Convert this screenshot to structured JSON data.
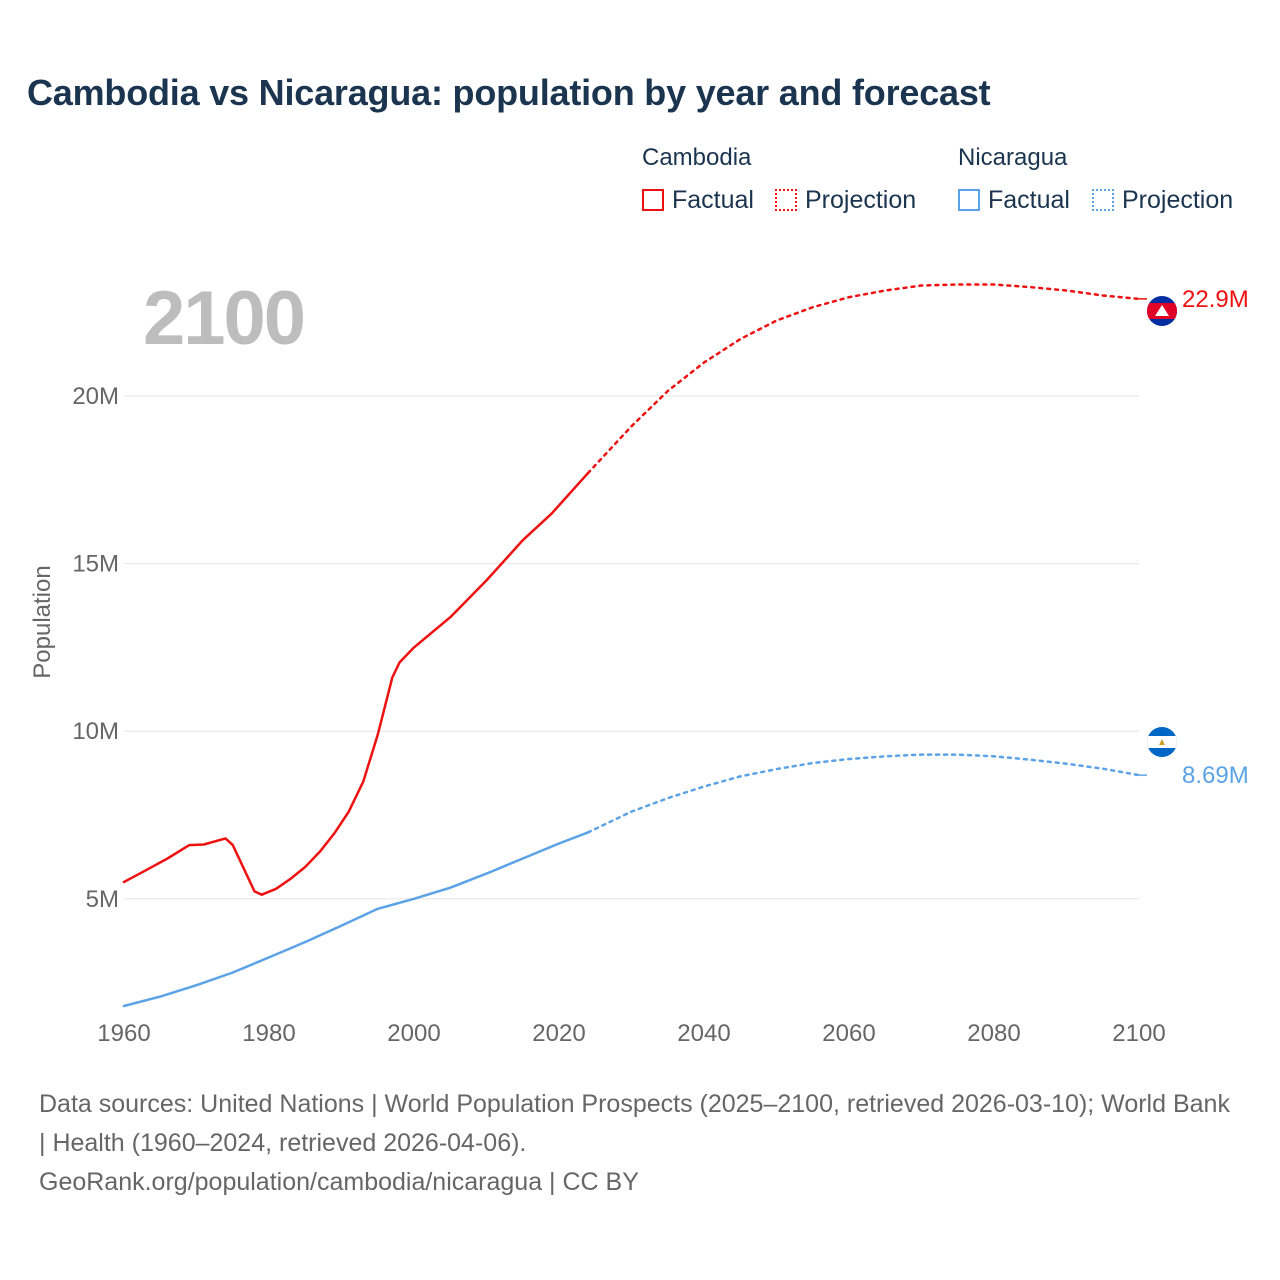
{
  "header": {
    "title": "Cambodia vs Nicaragua: population by year and forecast"
  },
  "legend": {
    "groups": [
      {
        "name": "Cambodia",
        "color": "#ee1111",
        "factual_label": "Factual",
        "projection_label": "Projection"
      },
      {
        "name": "Nicaragua",
        "color": "#5ba3e6",
        "factual_label": "Factual",
        "projection_label": "Projection"
      }
    ]
  },
  "year_overlay": "2100",
  "footer": {
    "sources": "Data sources: United Nations | World Population Prospects (2025–2100, retrieved 2026-03-10); World Bank | Health (1960–2024, retrieved 2026-04-06).",
    "credit": "GeoRank.org/population/cambodia/nicaragua | CC BY"
  },
  "chart_data": {
    "type": "line",
    "title": "Cambodia vs Nicaragua: population by year and forecast",
    "xlabel": "",
    "ylabel": "Population",
    "xlim": [
      1960,
      2100
    ],
    "ylim": [
      1800000,
      24000000
    ],
    "x_ticks": [
      1960,
      1980,
      2000,
      2020,
      2040,
      2060,
      2080,
      2100
    ],
    "y_ticks": [
      {
        "value": 5000000,
        "label": "5M"
      },
      {
        "value": 10000000,
        "label": "10M"
      },
      {
        "value": 15000000,
        "label": "15M"
      },
      {
        "value": 20000000,
        "label": "20M"
      }
    ],
    "grid": true,
    "series": [
      {
        "name": "Cambodia",
        "color": "#ee1111",
        "end_label": "22.9M",
        "factual": [
          [
            1960,
            5500000
          ],
          [
            1963,
            5850000
          ],
          [
            1966,
            6200000
          ],
          [
            1969,
            6600000
          ],
          [
            1971,
            6620000
          ],
          [
            1974,
            6800000
          ],
          [
            1975,
            6600000
          ],
          [
            1978,
            5220000
          ],
          [
            1979,
            5120000
          ],
          [
            1981,
            5300000
          ],
          [
            1983,
            5600000
          ],
          [
            1985,
            5950000
          ],
          [
            1987,
            6400000
          ],
          [
            1989,
            6950000
          ],
          [
            1991,
            7600000
          ],
          [
            1993,
            8500000
          ],
          [
            1995,
            9900000
          ],
          [
            1997,
            11600000
          ],
          [
            1998,
            12050000
          ],
          [
            2000,
            12500000
          ],
          [
            2005,
            13400000
          ],
          [
            2010,
            14500000
          ],
          [
            2015,
            15700000
          ],
          [
            2019,
            16500000
          ],
          [
            2024,
            17700000
          ]
        ],
        "projection": [
          [
            2024,
            17700000
          ],
          [
            2030,
            19100000
          ],
          [
            2035,
            20150000
          ],
          [
            2040,
            21000000
          ],
          [
            2045,
            21700000
          ],
          [
            2050,
            22250000
          ],
          [
            2055,
            22650000
          ],
          [
            2060,
            22950000
          ],
          [
            2065,
            23150000
          ],
          [
            2070,
            23300000
          ],
          [
            2075,
            23330000
          ],
          [
            2080,
            23330000
          ],
          [
            2085,
            23250000
          ],
          [
            2090,
            23150000
          ],
          [
            2095,
            23000000
          ],
          [
            2100,
            22900000
          ]
        ]
      },
      {
        "name": "Nicaragua",
        "color": "#5ba3e6",
        "end_label": "8.69M",
        "factual": [
          [
            1960,
            1800000
          ],
          [
            1965,
            2080000
          ],
          [
            1970,
            2420000
          ],
          [
            1975,
            2800000
          ],
          [
            1980,
            3250000
          ],
          [
            1985,
            3710000
          ],
          [
            1990,
            4200000
          ],
          [
            1995,
            4700000
          ],
          [
            2000,
            5000000
          ],
          [
            2005,
            5330000
          ],
          [
            2010,
            5750000
          ],
          [
            2015,
            6200000
          ],
          [
            2020,
            6650000
          ],
          [
            2024,
            6980000
          ]
        ],
        "projection": [
          [
            2024,
            6980000
          ],
          [
            2030,
            7600000
          ],
          [
            2035,
            8000000
          ],
          [
            2040,
            8350000
          ],
          [
            2045,
            8650000
          ],
          [
            2050,
            8870000
          ],
          [
            2055,
            9050000
          ],
          [
            2060,
            9170000
          ],
          [
            2065,
            9250000
          ],
          [
            2070,
            9300000
          ],
          [
            2075,
            9300000
          ],
          [
            2080,
            9250000
          ],
          [
            2085,
            9150000
          ],
          [
            2090,
            9030000
          ],
          [
            2095,
            8880000
          ],
          [
            2100,
            8690000
          ]
        ]
      }
    ]
  }
}
